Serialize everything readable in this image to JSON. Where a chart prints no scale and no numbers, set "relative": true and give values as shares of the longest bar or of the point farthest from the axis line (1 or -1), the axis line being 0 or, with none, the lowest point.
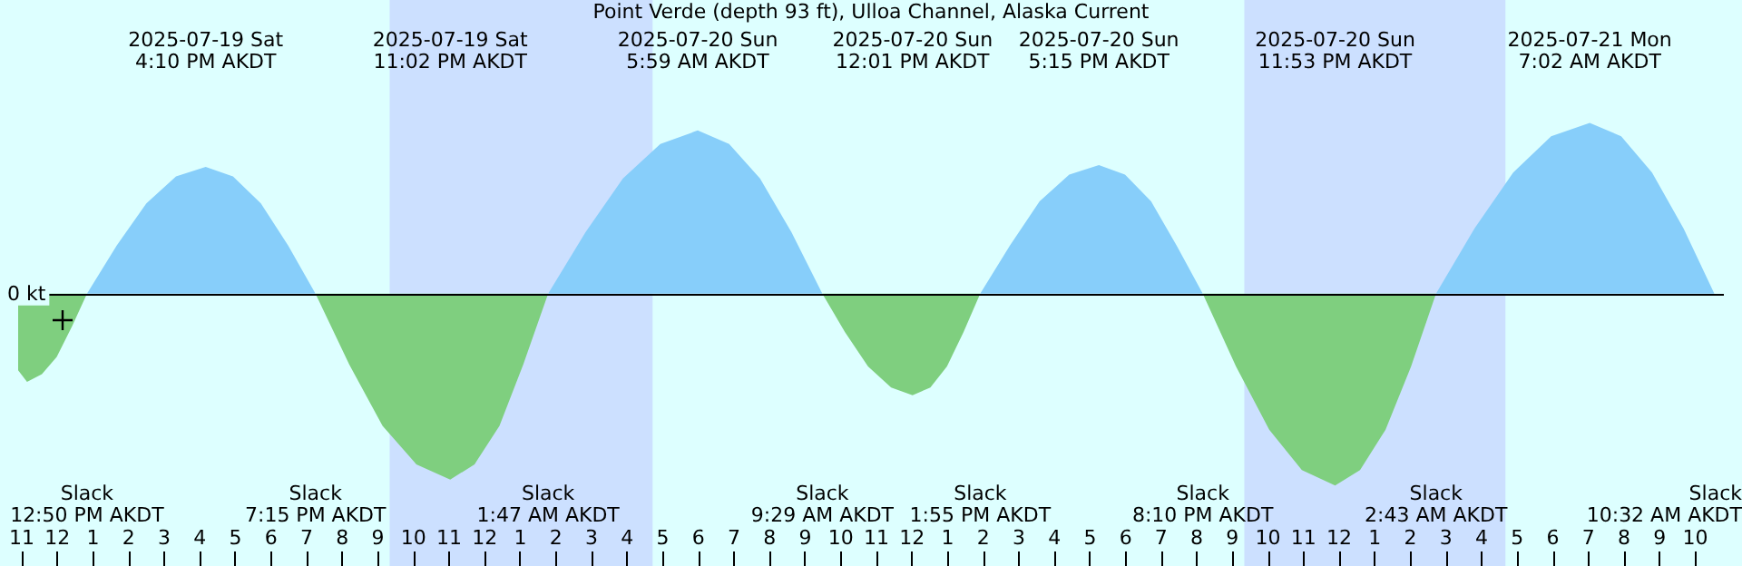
{
  "chart_data": {
    "type": "area",
    "title": "Point Verde (depth 93 ft), Ulloa Channel, Alaska Current",
    "relative": true,
    "x": [
      "2025-07-19T10:54",
      "2025-07-19T11:09",
      "2025-07-19T11:34",
      "2025-07-19T11:59",
      "2025-07-19T12:25",
      "2025-07-19T12:50",
      "2025-07-19T13:40",
      "2025-07-19T14:30",
      "2025-07-19T15:20",
      "2025-07-19T16:10",
      "2025-07-19T16:56",
      "2025-07-19T17:43",
      "2025-07-19T18:29",
      "2025-07-19T19:15",
      "2025-07-19T20:12",
      "2025-07-19T21:08",
      "2025-07-19T22:05",
      "2025-07-19T23:02",
      "2025-07-19T23:43",
      "2025-07-20T00:25",
      "2025-07-20T01:05",
      "2025-07-20T01:47",
      "2025-07-20T02:50",
      "2025-07-20T03:53",
      "2025-07-20T04:56",
      "2025-07-20T05:59",
      "2025-07-20T06:52",
      "2025-07-20T07:44",
      "2025-07-20T08:37",
      "2025-07-20T09:29",
      "2025-07-20T10:07",
      "2025-07-20T10:46",
      "2025-07-20T11:25",
      "2025-07-20T12:01",
      "2025-07-20T12:31",
      "2025-07-20T12:59",
      "2025-07-20T13:27",
      "2025-07-20T13:55",
      "2025-07-20T14:45",
      "2025-07-20T15:35",
      "2025-07-20T16:25",
      "2025-07-20T17:15",
      "2025-07-20T17:59",
      "2025-07-20T18:43",
      "2025-07-20T19:26",
      "2025-07-20T20:10",
      "2025-07-20T21:06",
      "2025-07-20T22:02",
      "2025-07-20T22:57",
      "2025-07-20T23:53",
      "2025-07-21T00:35",
      "2025-07-21T01:18",
      "2025-07-21T02:01",
      "2025-07-21T02:43",
      "2025-07-21T03:48",
      "2025-07-21T04:53",
      "2025-07-21T05:57",
      "2025-07-21T07:02",
      "2025-07-21T07:55",
      "2025-07-21T08:47",
      "2025-07-21T09:40",
      "2025-07-21T10:32"
    ],
    "series": [
      {
        "color": "#87cefa",
        "values": [
          null,
          null,
          null,
          null,
          null,
          0,
          0.25,
          0.47,
          0.61,
          0.66,
          0.61,
          0.47,
          0.25,
          0,
          null,
          null,
          null,
          null,
          null,
          null,
          null,
          0,
          0.32,
          0.6,
          0.78,
          0.85,
          0.78,
          0.6,
          0.32,
          0,
          null,
          null,
          null,
          null,
          null,
          null,
          null,
          0,
          0.25,
          0.48,
          0.62,
          0.67,
          0.62,
          0.48,
          0.25,
          0,
          null,
          null,
          null,
          null,
          null,
          null,
          null,
          0,
          0.34,
          0.63,
          0.82,
          0.89,
          0.82,
          0.63,
          0.34,
          0
        ]
      },
      {
        "color": "#7fcf7f",
        "values": [
          -0.4,
          -0.46,
          -0.42,
          -0.33,
          -0.17,
          0,
          null,
          null,
          null,
          null,
          null,
          null,
          null,
          0,
          -0.37,
          -0.69,
          -0.89,
          -0.97,
          -0.89,
          -0.69,
          -0.37,
          0,
          null,
          null,
          null,
          null,
          null,
          null,
          null,
          0,
          -0.2,
          -0.38,
          -0.49,
          -0.53,
          -0.49,
          -0.38,
          -0.2,
          0,
          null,
          null,
          null,
          null,
          null,
          null,
          null,
          0,
          -0.38,
          -0.71,
          -0.92,
          -1,
          -0.92,
          -0.71,
          -0.38,
          0,
          null,
          null,
          null,
          null,
          null,
          null,
          null,
          null
        ]
      }
    ],
    "xlim": [
      "2025-07-19T10:54",
      "2025-07-21T10:48"
    ],
    "xticks": [
      {
        "value": "2025-07-19T11:00",
        "label": "11"
      },
      {
        "value": "2025-07-19T12:00",
        "label": "12"
      },
      {
        "value": "2025-07-19T13:00",
        "label": "1"
      },
      {
        "value": "2025-07-19T14:00",
        "label": "2"
      },
      {
        "value": "2025-07-19T15:00",
        "label": "3"
      },
      {
        "value": "2025-07-19T16:00",
        "label": "4"
      },
      {
        "value": "2025-07-19T17:00",
        "label": "5"
      },
      {
        "value": "2025-07-19T18:00",
        "label": "6"
      },
      {
        "value": "2025-07-19T19:00",
        "label": "7"
      },
      {
        "value": "2025-07-19T20:00",
        "label": "8"
      },
      {
        "value": "2025-07-19T21:00",
        "label": "9"
      },
      {
        "value": "2025-07-19T22:00",
        "label": "10"
      },
      {
        "value": "2025-07-19T23:00",
        "label": "11"
      },
      {
        "value": "2025-07-20T00:00",
        "label": "12"
      },
      {
        "value": "2025-07-20T01:00",
        "label": "1"
      },
      {
        "value": "2025-07-20T02:00",
        "label": "2"
      },
      {
        "value": "2025-07-20T03:00",
        "label": "3"
      },
      {
        "value": "2025-07-20T04:00",
        "label": "4"
      },
      {
        "value": "2025-07-20T05:00",
        "label": "5"
      },
      {
        "value": "2025-07-20T06:00",
        "label": "6"
      },
      {
        "value": "2025-07-20T07:00",
        "label": "7"
      },
      {
        "value": "2025-07-20T08:00",
        "label": "8"
      },
      {
        "value": "2025-07-20T09:00",
        "label": "9"
      },
      {
        "value": "2025-07-20T10:00",
        "label": "10"
      },
      {
        "value": "2025-07-20T11:00",
        "label": "11"
      },
      {
        "value": "2025-07-20T12:00",
        "label": "12"
      },
      {
        "value": "2025-07-20T13:00",
        "label": "1"
      },
      {
        "value": "2025-07-20T14:00",
        "label": "2"
      },
      {
        "value": "2025-07-20T15:00",
        "label": "3"
      },
      {
        "value": "2025-07-20T16:00",
        "label": "4"
      },
      {
        "value": "2025-07-20T17:00",
        "label": "5"
      },
      {
        "value": "2025-07-20T18:00",
        "label": "6"
      },
      {
        "value": "2025-07-20T19:00",
        "label": "7"
      },
      {
        "value": "2025-07-20T20:00",
        "label": "8"
      },
      {
        "value": "2025-07-20T21:00",
        "label": "9"
      },
      {
        "value": "2025-07-20T22:00",
        "label": "10"
      },
      {
        "value": "2025-07-20T23:00",
        "label": "11"
      },
      {
        "value": "2025-07-21T00:00",
        "label": "12"
      },
      {
        "value": "2025-07-21T01:00",
        "label": "1"
      },
      {
        "value": "2025-07-21T02:00",
        "label": "2"
      },
      {
        "value": "2025-07-21T03:00",
        "label": "3"
      },
      {
        "value": "2025-07-21T04:00",
        "label": "4"
      },
      {
        "value": "2025-07-21T05:00",
        "label": "5"
      },
      {
        "value": "2025-07-21T06:00",
        "label": "6"
      },
      {
        "value": "2025-07-21T07:00",
        "label": "7"
      },
      {
        "value": "2025-07-21T08:00",
        "label": "8"
      },
      {
        "value": "2025-07-21T09:00",
        "label": "9"
      },
      {
        "value": "2025-07-21T10:00",
        "label": "10"
      }
    ],
    "ref_lines": [
      {
        "axis": "y",
        "value": 0,
        "label": "0 kt",
        "color": "#000000"
      }
    ],
    "bands": [
      {
        "axis": "x",
        "from": "2025-07-19T21:20",
        "to": "2025-07-20T04:43",
        "color": "#cce0ff"
      },
      {
        "axis": "x",
        "from": "2025-07-20T21:20",
        "to": "2025-07-21T04:40",
        "color": "#cce0ff"
      }
    ],
    "annotations": [
      "2025-07-19 Sat\n4:10 PM AKDT",
      "2025-07-19 Sat\n11:02 PM AKDT",
      "2025-07-20 Sun\n5:59 AM AKDT",
      "2025-07-20 Sun\n12:01 PM AKDT",
      "2025-07-20 Sun\n5:15 PM AKDT",
      "2025-07-20 Sun\n11:53 PM AKDT",
      "2025-07-21 Mon\n7:02 AM AKDT",
      "Slack\n12:50 PM AKDT",
      "Slack\n7:15 PM AKDT",
      "Slack\n1:47 AM AKDT",
      "Slack\n9:29 AM AKDT",
      "Slack\n1:55 PM AKDT",
      "Slack\n8:10 PM AKDT",
      "Slack\n2:43 AM AKDT",
      "Slack\n10:32 AM AKDT"
    ],
    "grid": false,
    "marker": "none"
  }
}
